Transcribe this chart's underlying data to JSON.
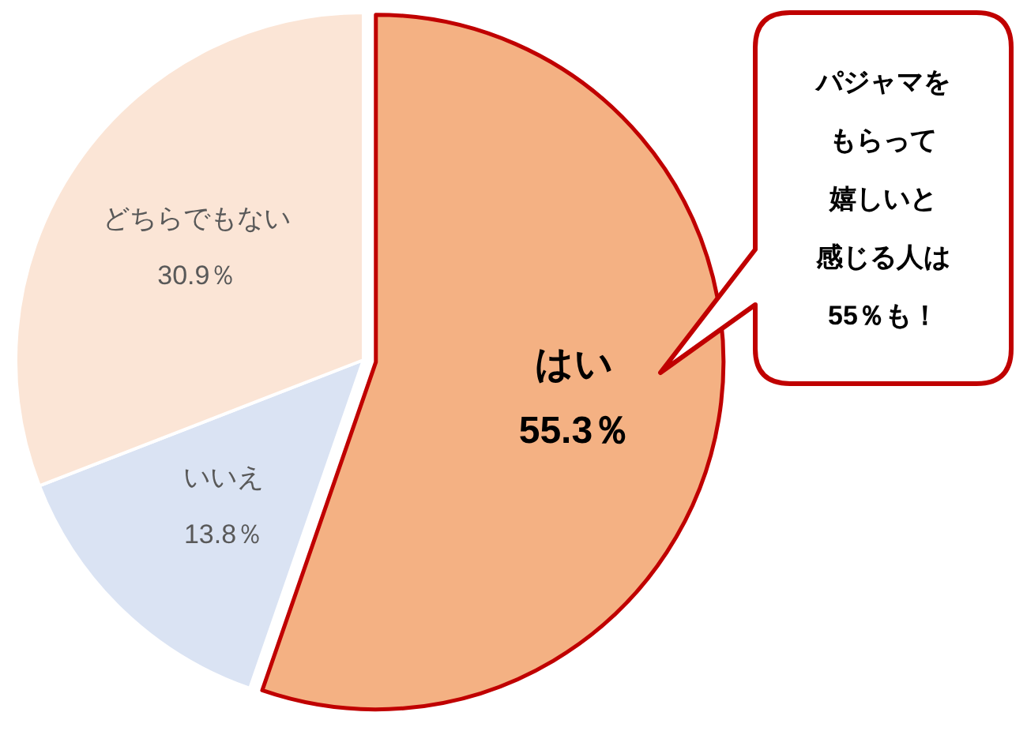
{
  "chart_data": {
    "type": "pie",
    "categories": [
      "はい",
      "いいえ",
      "どちらでもない"
    ],
    "values": [
      55.3,
      13.8,
      30.9
    ],
    "value_labels": [
      "55.3％",
      "13.8％",
      "30.9％"
    ],
    "colors": [
      "#f4b183",
      "#dae3f3",
      "#fbe5d6"
    ],
    "annotations": [
      "パジャマを",
      "もらって",
      "嬉しいと",
      "感じる人は",
      "55％も！"
    ],
    "legend": false
  }
}
